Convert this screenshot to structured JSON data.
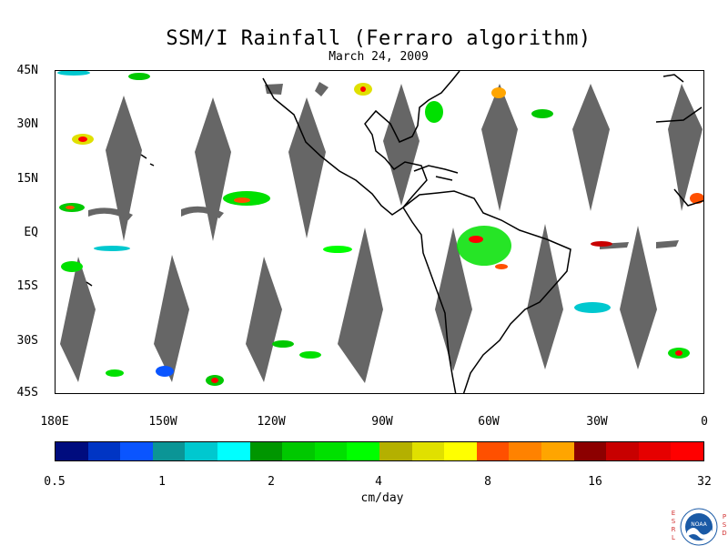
{
  "title": "SSM/I Rainfall (Ferraro algorithm)",
  "subtitle": "March 24, 2009",
  "lat_labels": [
    "45N",
    "30N",
    "15N",
    "EQ",
    "15S",
    "30S",
    "45S"
  ],
  "lon_labels": [
    "180E",
    "150W",
    "120W",
    "90W",
    "60W",
    "30W",
    "0"
  ],
  "colorbar": {
    "colors": [
      "#000c7e",
      "#0035c4",
      "#0a55ff",
      "#0b9596",
      "#00c8cf",
      "#00ffff",
      "#009600",
      "#00c800",
      "#00e000",
      "#00ff00",
      "#b4b000",
      "#e0e000",
      "#ffff00",
      "#ff5000",
      "#ff8200",
      "#ffa500",
      "#8c0000",
      "#c80000",
      "#e60000",
      "#ff0000"
    ],
    "tick_labels": [
      "0.5",
      "1",
      "2",
      "4",
      "8",
      "16",
      "32"
    ],
    "units": "cm/day"
  },
  "colors": {
    "no_data": "#666666",
    "coast": "#000000",
    "land_cut": "#707070"
  },
  "logo": {
    "left_text": "ESRL",
    "right_text": "PSD",
    "name": "NOAA"
  }
}
